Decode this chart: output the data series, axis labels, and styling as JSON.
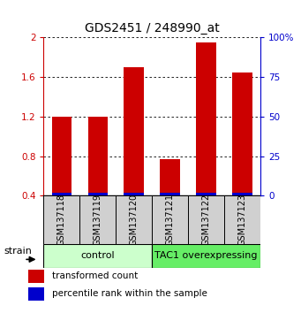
{
  "title": "GDS2451 / 248990_at",
  "samples": [
    "GSM137118",
    "GSM137119",
    "GSM137120",
    "GSM137121",
    "GSM137122",
    "GSM137123"
  ],
  "transformed_counts": [
    1.2,
    1.2,
    1.7,
    0.77,
    1.95,
    1.65
  ],
  "bar_bottom": 0.4,
  "blue_bar_height": 0.03,
  "ylim_left": [
    0.4,
    2.0
  ],
  "ylim_right": [
    0,
    100
  ],
  "yticks_left": [
    0.4,
    0.8,
    1.2,
    1.6,
    2.0
  ],
  "ytick_labels_left": [
    "0.4",
    "0.8",
    "1.2",
    "1.6",
    "2"
  ],
  "yticks_right": [
    0,
    25,
    50,
    75,
    100
  ],
  "ytick_labels_right": [
    "0",
    "25",
    "50",
    "75",
    "100%"
  ],
  "red_color": "#cc0000",
  "blue_color": "#0000cc",
  "control_label": "control",
  "tac1_label": "TAC1 overexpressing",
  "legend_red": "transformed count",
  "legend_blue": "percentile rank within the sample",
  "strain_label": "strain",
  "bar_width": 0.55,
  "grid_color": "#000000",
  "light_green": "#ccffcc",
  "dark_green": "#66ee66",
  "gray_box": "#d0d0d0"
}
